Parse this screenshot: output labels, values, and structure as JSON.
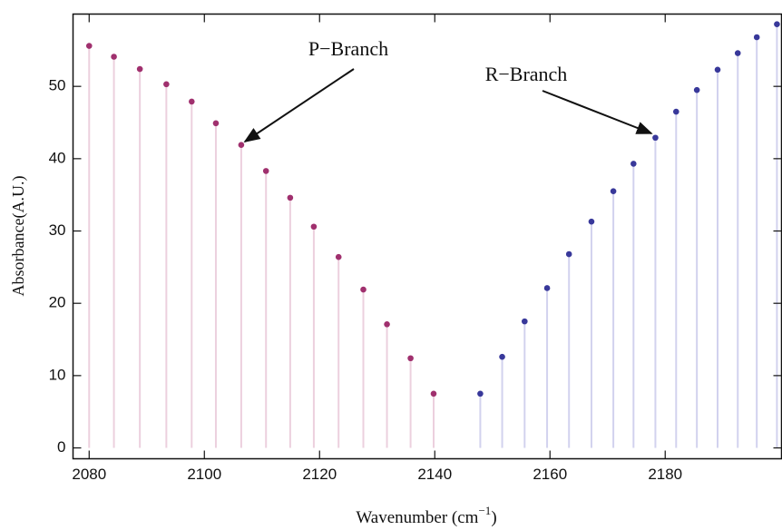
{
  "chart_data": {
    "type": "stem",
    "x_label": [
      "Wavenumber (cm",
      "−1",
      ")"
    ],
    "y_label": "Absorbance(A.U.)",
    "xlim": [
      2077.2,
      2200.2
    ],
    "ylim": [
      -1.5,
      60
    ],
    "xticks": [
      2080,
      2100,
      2120,
      2140,
      2160,
      2180
    ],
    "yticks": [
      0,
      10,
      20,
      30,
      40,
      50
    ],
    "series": [
      {
        "name": "P−Branch",
        "color": "#a0306e",
        "stem_color": "#ecd0de",
        "x": [
          2080,
          2084.3,
          2088.8,
          2093.4,
          2097.8,
          2102.0,
          2106.4,
          2110.7,
          2114.9,
          2119.0,
          2123.3,
          2127.6,
          2131.7,
          2135.8,
          2139.8
        ],
        "values": [
          55.6,
          54.1,
          52.4,
          50.3,
          47.9,
          44.9,
          41.9,
          38.3,
          34.6,
          30.6,
          26.4,
          21.9,
          17.1,
          12.4,
          7.5
        ]
      },
      {
        "name": "R−Branch",
        "color": "#38389a",
        "stem_color": "#d2d2ee",
        "x": [
          2147.9,
          2151.7,
          2155.6,
          2159.5,
          2163.3,
          2167.2,
          2171.0,
          2174.5,
          2178.3,
          2181.9,
          2185.5,
          2189.1,
          2192.6,
          2195.9,
          2199.4
        ],
        "values": [
          7.5,
          12.6,
          17.5,
          22.1,
          26.8,
          31.3,
          35.5,
          39.3,
          42.9,
          46.5,
          49.5,
          52.3,
          54.6,
          56.8,
          58.6
        ]
      }
    ]
  }
}
